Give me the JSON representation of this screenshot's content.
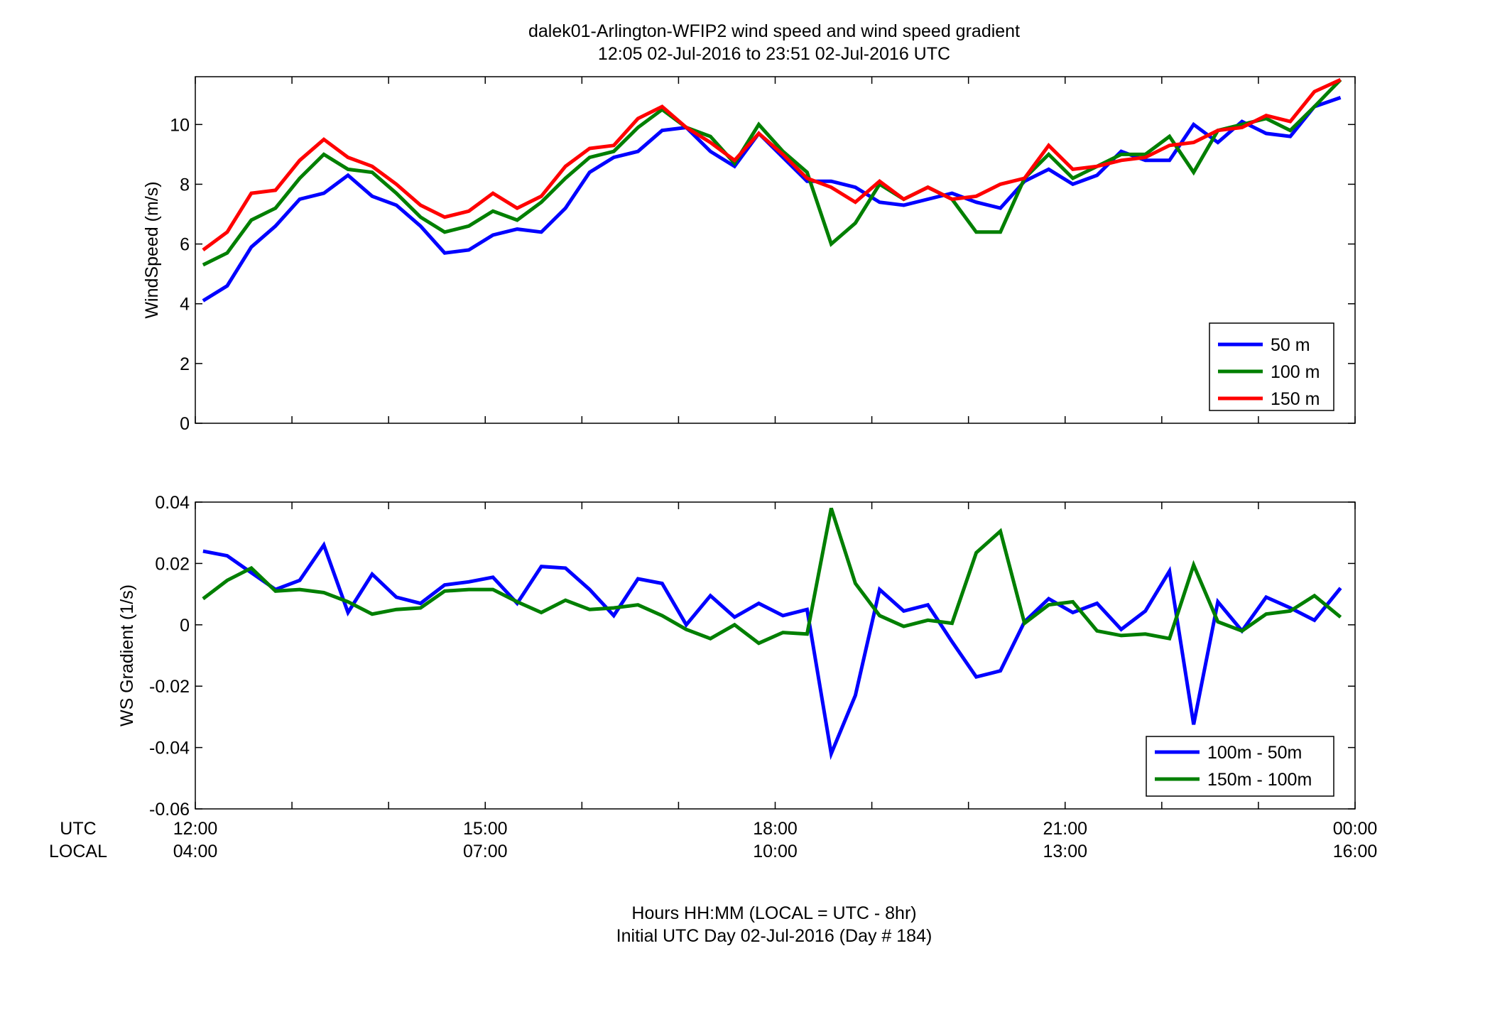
{
  "figure": {
    "title_line1": "dalek01-Arlington-WFIP2  wind speed and wind speed gradient",
    "title_line2": "12:05 02-Jul-2016 to 23:51 02-Jul-2016  UTC",
    "xlabel_line1": "Hours HH:MM  (LOCAL = UTC - 8hr)",
    "xlabel_line2": "Initial UTC Day 02-Jul-2016 (Day # 184)",
    "row_label_utc": "UTC",
    "row_label_local": "LOCAL",
    "x_ticks_utc": [
      "12:00",
      "15:00",
      "18:00",
      "21:00",
      "00:00"
    ],
    "x_ticks_local": [
      "04:00",
      "07:00",
      "10:00",
      "13:00",
      "16:00"
    ]
  },
  "chart_data": [
    {
      "type": "line",
      "ylabel": "WindSpeed (m/s)",
      "xlim_hours_utc": [
        12,
        24
      ],
      "ylim": [
        0,
        11.6
      ],
      "y_ticks": [
        "0",
        "2",
        "4",
        "6",
        "8",
        "10"
      ],
      "grid": false,
      "legend_position": "bottom-right",
      "x_hours_utc": [
        12.08,
        12.33,
        12.58,
        12.83,
        13.08,
        13.33,
        13.58,
        13.83,
        14.08,
        14.33,
        14.58,
        14.83,
        15.08,
        15.33,
        15.58,
        15.83,
        16.08,
        16.33,
        16.58,
        16.83,
        17.08,
        17.33,
        17.58,
        17.83,
        18.08,
        18.33,
        18.58,
        18.83,
        19.08,
        19.33,
        19.58,
        19.83,
        20.08,
        20.33,
        20.58,
        20.83,
        21.08,
        21.33,
        21.58,
        21.83,
        22.08,
        22.33,
        22.58,
        22.83,
        23.08,
        23.33,
        23.58,
        23.85
      ],
      "series": [
        {
          "name": "50 m",
          "color": "#0000ff",
          "values": [
            4.1,
            4.6,
            5.9,
            6.6,
            7.5,
            7.7,
            8.3,
            7.6,
            7.3,
            6.6,
            5.7,
            5.8,
            6.3,
            6.5,
            6.4,
            7.2,
            8.4,
            8.9,
            9.1,
            9.8,
            9.9,
            9.1,
            8.6,
            9.7,
            8.9,
            8.1,
            8.1,
            7.9,
            7.4,
            7.3,
            7.5,
            7.7,
            7.4,
            7.2,
            8.1,
            8.5,
            8.0,
            8.3,
            9.1,
            8.8,
            8.8,
            10.0,
            9.4,
            10.1,
            9.7,
            9.6,
            10.6,
            10.9
          ]
        },
        {
          "name": "100 m",
          "color": "#007f00",
          "values": [
            5.3,
            5.7,
            6.8,
            7.2,
            8.2,
            9.0,
            8.5,
            8.4,
            7.7,
            6.9,
            6.4,
            6.6,
            7.1,
            6.8,
            7.4,
            8.2,
            8.9,
            9.1,
            9.9,
            10.5,
            9.9,
            9.6,
            8.7,
            10.0,
            9.1,
            8.4,
            6.0,
            6.7,
            8.0,
            7.5,
            7.9,
            7.5,
            6.4,
            6.4,
            8.2,
            9.0,
            8.2,
            8.6,
            9.0,
            9.0,
            9.6,
            8.4,
            9.8,
            10.0,
            10.2,
            9.8,
            10.6,
            11.5
          ]
        },
        {
          "name": "150 m",
          "color": "#ff0000",
          "values": [
            5.8,
            6.4,
            7.7,
            7.8,
            8.8,
            9.5,
            8.9,
            8.6,
            8.0,
            7.3,
            6.9,
            7.1,
            7.7,
            7.2,
            7.6,
            8.6,
            9.2,
            9.3,
            10.2,
            10.6,
            9.9,
            9.4,
            8.8,
            9.7,
            9.0,
            8.2,
            7.9,
            7.4,
            8.1,
            7.5,
            7.9,
            7.5,
            7.6,
            8.0,
            8.2,
            9.3,
            8.5,
            8.6,
            8.8,
            8.9,
            9.3,
            9.4,
            9.8,
            9.9,
            10.3,
            10.1,
            11.1,
            11.5
          ]
        }
      ]
    },
    {
      "type": "line",
      "ylabel": "WS Gradient (1/s)",
      "xlim_hours_utc": [
        12,
        24
      ],
      "ylim": [
        -0.06,
        0.04
      ],
      "y_ticks": [
        "-0.06",
        "-0.04",
        "-0.02",
        "0",
        "0.02",
        "0.04"
      ],
      "grid": false,
      "legend_position": "bottom-right",
      "x_hours_utc": [
        12.08,
        12.33,
        12.58,
        12.83,
        13.08,
        13.33,
        13.58,
        13.83,
        14.08,
        14.33,
        14.58,
        14.83,
        15.08,
        15.33,
        15.58,
        15.83,
        16.08,
        16.33,
        16.58,
        16.83,
        17.08,
        17.33,
        17.58,
        17.83,
        18.08,
        18.33,
        18.58,
        18.83,
        19.08,
        19.33,
        19.58,
        19.83,
        20.08,
        20.33,
        20.58,
        20.83,
        21.08,
        21.33,
        21.58,
        21.83,
        22.08,
        22.33,
        22.58,
        22.83,
        23.08,
        23.33,
        23.58,
        23.85
      ],
      "series": [
        {
          "name": "100m - 50m",
          "color": "#0000ff",
          "values": [
            0.024,
            0.0225,
            0.017,
            0.0115,
            0.0145,
            0.026,
            0.004,
            0.0165,
            0.009,
            0.007,
            0.013,
            0.014,
            0.0155,
            0.007,
            0.019,
            0.0185,
            0.0115,
            0.003,
            0.015,
            0.0135,
            0.0,
            0.0095,
            0.0025,
            0.007,
            0.003,
            0.005,
            -0.042,
            -0.023,
            0.0115,
            0.0045,
            0.0065,
            -0.0055,
            -0.017,
            -0.015,
            0.001,
            0.0085,
            0.004,
            0.007,
            -0.0015,
            0.0045,
            0.0175,
            -0.0325,
            0.0075,
            -0.002,
            0.009,
            0.0055,
            0.0015,
            0.012
          ]
        },
        {
          "name": "150m - 100m",
          "color": "#007f00",
          "values": [
            0.0085,
            0.0145,
            0.0185,
            0.011,
            0.0115,
            0.0105,
            0.0075,
            0.0035,
            0.005,
            0.0055,
            0.011,
            0.0115,
            0.0115,
            0.0075,
            0.004,
            0.008,
            0.005,
            0.0055,
            0.0065,
            0.003,
            -0.0015,
            -0.0045,
            0.0,
            -0.006,
            -0.0025,
            -0.003,
            0.038,
            0.0135,
            0.003,
            -0.0005,
            0.0015,
            0.0005,
            0.0235,
            0.0305,
            0.0005,
            0.0065,
            0.0075,
            -0.002,
            -0.0035,
            -0.003,
            -0.0045,
            0.0195,
            0.001,
            -0.002,
            0.0035,
            0.0045,
            0.0095,
            0.0025
          ]
        }
      ]
    }
  ]
}
